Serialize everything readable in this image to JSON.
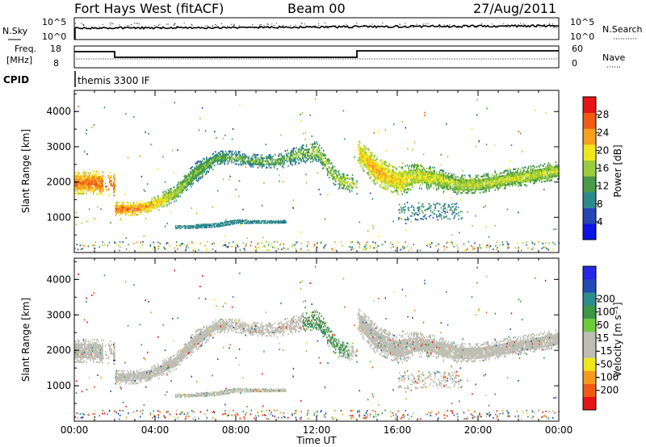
{
  "header": {
    "radar": "Fort Hays West (fitACF)",
    "beam": "Beam 00",
    "date": "27/Aug/2011"
  },
  "strips": {
    "nsky_label": "N.Sky",
    "nsky_ticks": [
      "10^5",
      "10^0"
    ],
    "nsearch_label": "N.Search",
    "nsearch_ticks": [
      "10^5",
      "10^0"
    ],
    "freq_label_line1": "Freq.",
    "freq_label_line2": "[MHz]",
    "freq_ticks": [
      "18",
      "8"
    ],
    "nave_label": "Nave",
    "nave_ticks": [
      "60",
      "0"
    ],
    "cpid_label": "CPID",
    "cpid_value": "themis 3300 IF"
  },
  "xaxis": {
    "label": "Time UT",
    "ticks": [
      "00:00",
      "04:00",
      "08:00",
      "12:00",
      "16:00",
      "20:00",
      "00:00"
    ]
  },
  "colors": {
    "power_scale": [
      "#0a14e6",
      "#2346b4",
      "#2f8a8c",
      "#4a9a46",
      "#9acc3c",
      "#f0e61e",
      "#f5a01e",
      "#f05a14",
      "#e61414"
    ],
    "velocity_scale": [
      "#e61414",
      "#f05a14",
      "#f59b1e",
      "#f0e61e",
      "#bebeb4",
      "#bebeb4",
      "#6ecc3c",
      "#3c9646",
      "#2d8c8c",
      "#234bb4",
      "#2828e6"
    ],
    "scatter_gray": "#bebeb4"
  },
  "chart_data": [
    {
      "type": "heatmap",
      "title": "",
      "xlabel": "",
      "ylabel": "Slant Range [km]",
      "x_hours": [
        0,
        1,
        2,
        2.01,
        3,
        4,
        5,
        6,
        7,
        8,
        9,
        10,
        11,
        12,
        13,
        13.99,
        14,
        15,
        16,
        17,
        18,
        19,
        20,
        21,
        22,
        23,
        24
      ],
      "x_ticks": [
        "00:00",
        "04:00",
        "08:00",
        "12:00",
        "16:00",
        "20:00",
        "00:00"
      ],
      "y_ticks": [
        1000,
        2000,
        3000,
        4000
      ],
      "ylim": [
        0,
        4600
      ],
      "colorbar_label": "Power [dB]",
      "colorbar_ticks": [
        4,
        8,
        12,
        16,
        20,
        24,
        28
      ],
      "colorbar_range": [
        0,
        32
      ],
      "bands": [
        {
          "name": "",
          "center_km": [
            2000,
            2000,
            1950,
            1250,
            1250,
            1400,
            1700,
            2300,
            2700,
            2700,
            2600,
            2600,
            2800,
            2900,
            2100,
            1900,
            2900,
            2300,
            2050,
            2200,
            2100,
            1950,
            1950,
            2050,
            2150,
            2250,
            2350
          ],
          "halfwidth_km": [
            250,
            250,
            250,
            150,
            150,
            150,
            180,
            200,
            150,
            150,
            150,
            150,
            180,
            200,
            180,
            150,
            250,
            300,
            300,
            250,
            220,
            200,
            200,
            200,
            200,
            200,
            200
          ],
          "power_db": [
            20,
            21,
            21,
            21,
            20,
            17,
            12,
            10,
            9,
            9,
            9,
            9,
            10,
            11,
            13,
            13,
            16,
            18,
            16,
            14,
            13,
            13,
            13,
            13,
            13,
            13,
            13
          ]
        },
        {
          "name": "",
          "x_hours": [
            5,
            6,
            7,
            7.5,
            8,
            9,
            10,
            10.5
          ],
          "center_km": [
            750,
            760,
            800,
            850,
            900,
            900,
            900,
            900
          ],
          "halfwidth_km": [
            35,
            45,
            50,
            50,
            50,
            40,
            40,
            30
          ],
          "power_db": [
            8,
            8,
            8,
            8,
            8,
            8,
            8,
            7
          ]
        }
      ]
    },
    {
      "type": "heatmap",
      "title": "",
      "xlabel": "Time UT",
      "ylabel": "Slant Range [km]",
      "x_ticks": [
        "00:00",
        "04:00",
        "08:00",
        "12:00",
        "16:00",
        "20:00",
        "00:00"
      ],
      "y_ticks": [
        1000,
        2000,
        3000,
        4000
      ],
      "ylim": [
        0,
        4600
      ],
      "colorbar_label": "Velocity [m s⁻¹]",
      "colorbar_ticks": [
        -200,
        -100,
        -50,
        -15,
        15,
        50,
        100,
        200
      ],
      "colorbar_range": [
        -250,
        250
      ],
      "velocity_note_series": [
        {
          "name": "",
          "x_hours": [
            11.3,
            12.5,
            13.5
          ],
          "velocity_ms": [
            60,
            60,
            40
          ]
        }
      ],
      "dominant_velocity_ms": 0
    }
  ]
}
